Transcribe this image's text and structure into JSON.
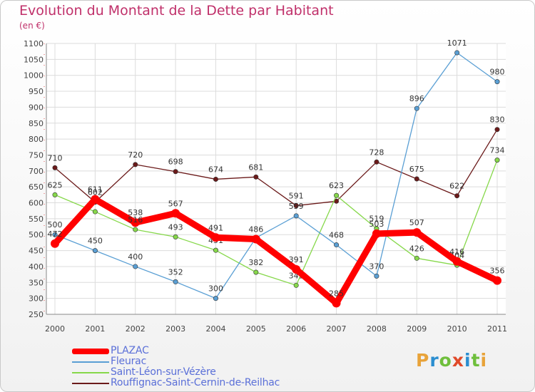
{
  "title": "Evolution du Montant de la Dette par Habitant",
  "subtitle": "(en €)",
  "logo_text": "Proxiti",
  "logo_colors": [
    "#e8a33a",
    "#2b8ed0",
    "#6fbf3c",
    "#e04a2a",
    "#2b8ed0",
    "#6fbf3c",
    "#e8a33a"
  ],
  "chart_data": {
    "type": "line",
    "x": [
      "2000",
      "2001",
      "2002",
      "2003",
      "2004",
      "2005",
      "2006",
      "2007",
      "2008",
      "2009",
      "2010",
      "2011"
    ],
    "ylim": [
      250,
      1100
    ],
    "yticks": [
      250,
      300,
      350,
      400,
      450,
      500,
      550,
      600,
      650,
      700,
      750,
      800,
      850,
      900,
      950,
      1000,
      1050,
      1100
    ],
    "grid": true,
    "legend_position": "bottom-left",
    "series": [
      {
        "name": "Rouffignac-Saint-Cernin-de-Reilhac",
        "color": "#6b1a1a",
        "values": [
          710,
          602,
          720,
          698,
          674,
          681,
          591,
          605,
          728,
          675,
          622,
          830
        ],
        "labels": [
          "710",
          "",
          "720",
          "698",
          "674",
          "681",
          "591",
          "",
          "728",
          "675",
          "622",
          "830"
        ]
      },
      {
        "name": "Saint-Léon-sur-Vézère",
        "color": "#86d84a",
        "values": [
          625,
          572,
          516,
          493,
          451,
          382,
          341,
          623,
          519,
          426,
          404,
          734
        ],
        "labels": [
          "625",
          "",
          "",
          "493",
          "451",
          "382",
          "341",
          "623",
          "519",
          "426",
          "404",
          "734"
        ]
      },
      {
        "name": "Fleurac",
        "color": "#5a9fd4",
        "values": [
          500,
          450,
          400,
          352,
          300,
          490,
          559,
          468,
          370,
          896,
          1071,
          980
        ],
        "labels": [
          "500",
          "450",
          "400",
          "352",
          "300",
          "",
          "559",
          "468",
          "370",
          "896",
          "1071",
          "980"
        ]
      },
      {
        "name": "PLAZAC",
        "color": "#ff0000",
        "values": [
          472,
          611,
          538,
          567,
          491,
          486,
          391,
          285,
          503,
          507,
          416,
          356
        ],
        "labels": [
          "472",
          "611",
          "538",
          "567",
          "491",
          "486",
          "391",
          "285",
          "503",
          "507",
          "416",
          "356"
        ]
      }
    ],
    "extra_labels": [
      {
        "series": "Rouffignac-Saint-Cernin-de-Reilhac",
        "x": "2001",
        "label": "602"
      },
      {
        "series": "Saint-Léon-sur-Vézère",
        "x": "2002",
        "label": "516"
      }
    ]
  },
  "legend": [
    {
      "label": "PLAZAC",
      "color": "#ff0000",
      "thickness": 8
    },
    {
      "label": "Fleurac",
      "color": "#5a9fd4",
      "thickness": 2
    },
    {
      "label": "Saint-Léon-sur-Vézère",
      "color": "#86d84a",
      "thickness": 2
    },
    {
      "label": "Rouffignac-Saint-Cernin-de-Reilhac",
      "color": "#6b1a1a",
      "thickness": 2
    }
  ]
}
